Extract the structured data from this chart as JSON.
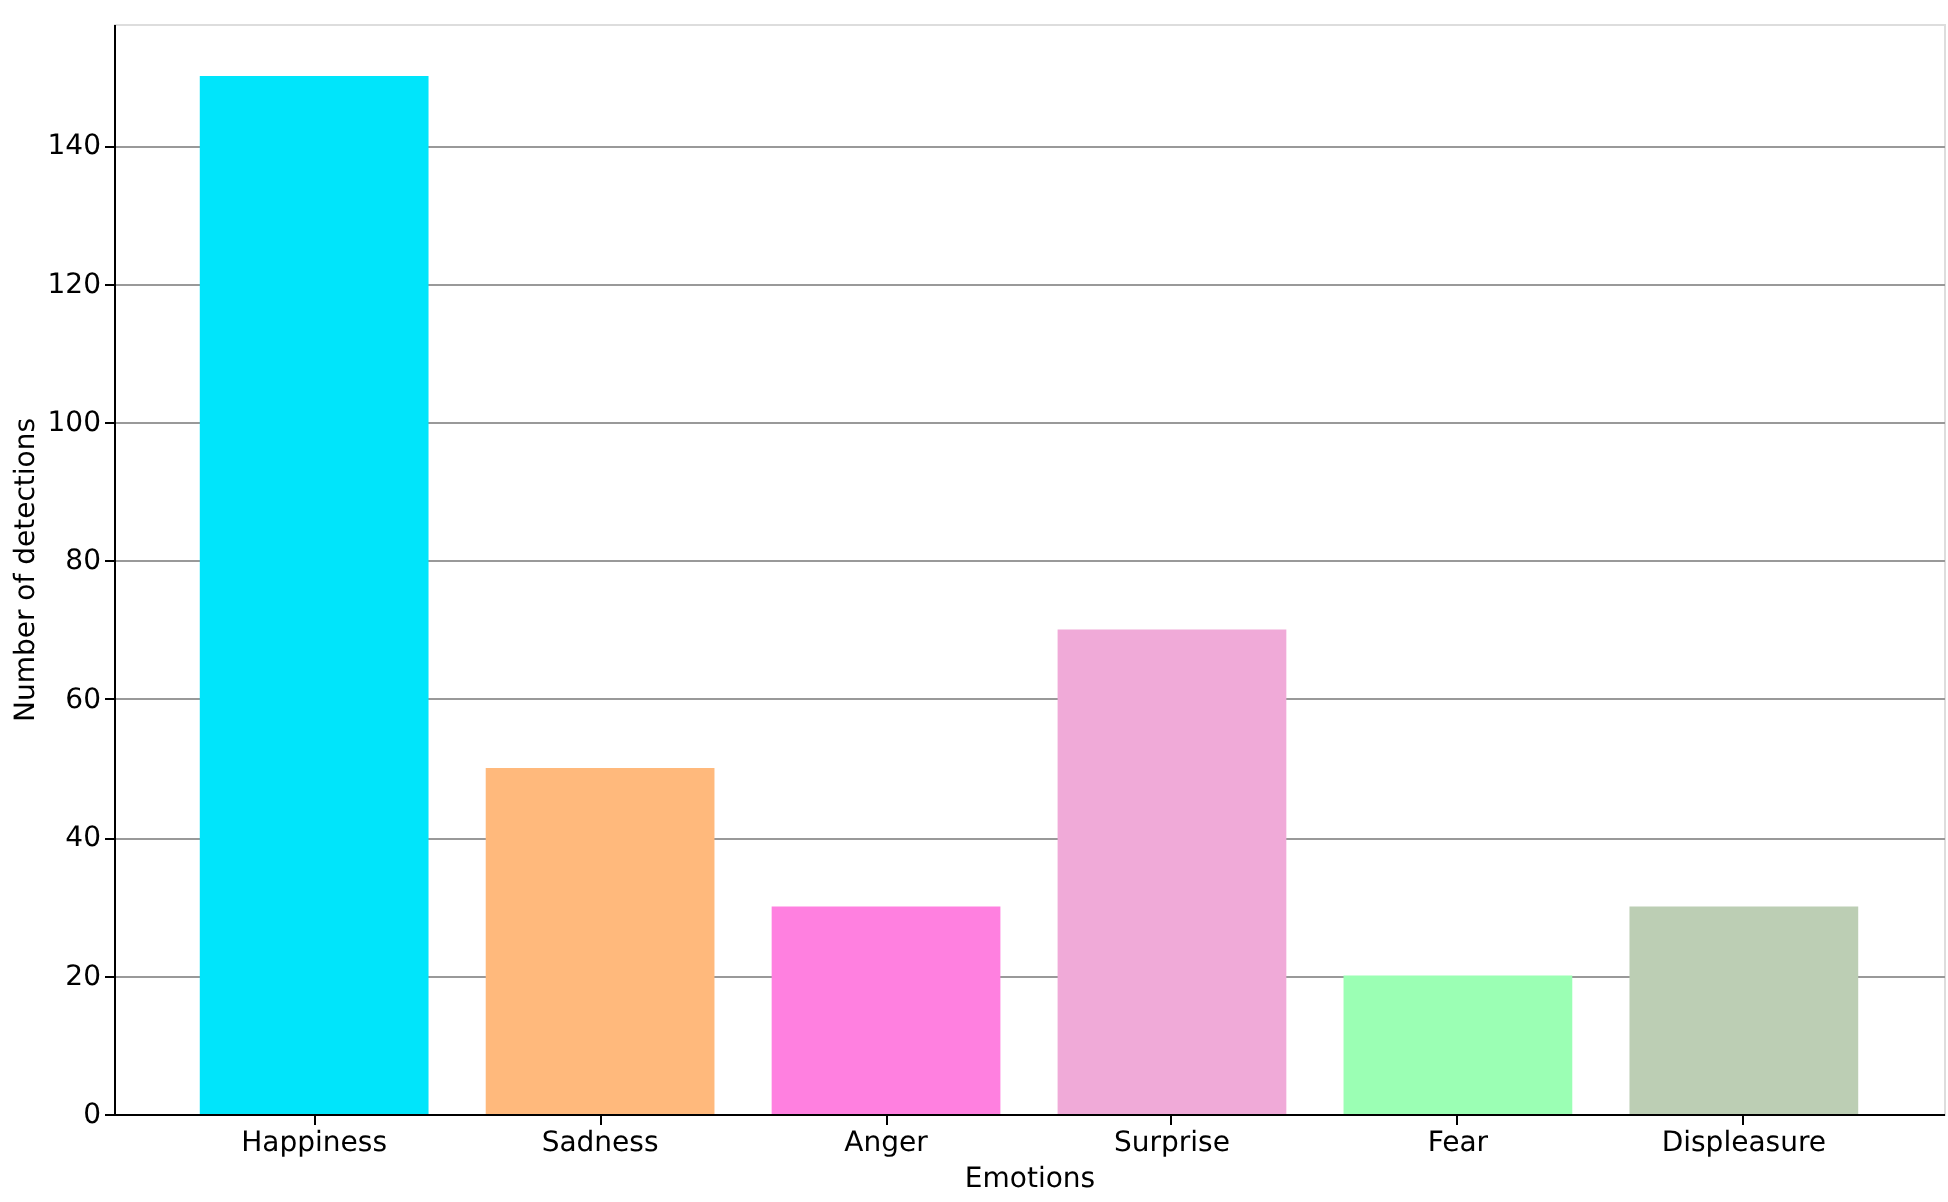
{
  "chart_data": {
    "type": "bar",
    "xlabel": "Emotions",
    "ylabel": "Number of detections",
    "categories": [
      "Happiness",
      "Sadness",
      "Anger",
      "Surprise",
      "Fear",
      "Displeasure"
    ],
    "values": [
      150,
      50,
      30,
      70,
      20,
      30
    ],
    "colors": [
      "#00e5fb",
      "#ffb97c",
      "#ff80e0",
      "#f0aad8",
      "#9bffb4",
      "#bcceb4"
    ],
    "ylim": [
      0,
      157.5
    ],
    "yticks": [
      0,
      20,
      40,
      60,
      80,
      100,
      120,
      140
    ],
    "grid": "y"
  }
}
